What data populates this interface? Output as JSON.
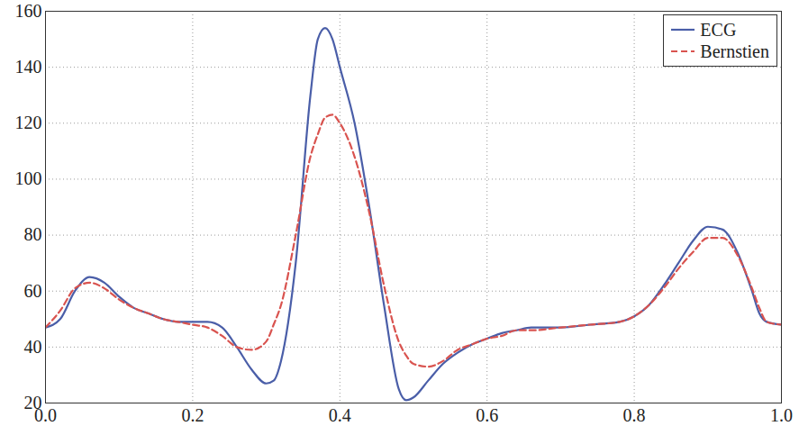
{
  "chart_data": {
    "type": "line",
    "x": [
      0,
      0.02,
      0.04,
      0.06,
      0.08,
      0.1,
      0.12,
      0.14,
      0.16,
      0.18,
      0.2,
      0.22,
      0.24,
      0.26,
      0.28,
      0.3,
      0.31,
      0.32,
      0.34,
      0.36,
      0.37,
      0.38,
      0.39,
      0.4,
      0.42,
      0.44,
      0.46,
      0.48,
      0.49,
      0.5,
      0.52,
      0.54,
      0.56,
      0.58,
      0.6,
      0.62,
      0.64,
      0.66,
      0.7,
      0.74,
      0.78,
      0.8,
      0.82,
      0.84,
      0.86,
      0.88,
      0.9,
      0.92,
      0.94,
      0.96,
      0.97,
      0.98,
      1
    ],
    "series": [
      {
        "name": "ECG",
        "color": "#4a5ea8",
        "line_style": "solid",
        "values": [
          47,
          50,
          60,
          65,
          63,
          58,
          54,
          52,
          50,
          49,
          49,
          49,
          47,
          40,
          32,
          27,
          28,
          35,
          70,
          130,
          150,
          154,
          150,
          140,
          120,
          90,
          55,
          25,
          21,
          22,
          28,
          34,
          38,
          41,
          43,
          45,
          46,
          47,
          47,
          48,
          49,
          51,
          55,
          62,
          70,
          78,
          83,
          82,
          74,
          60,
          52,
          49,
          48
        ]
      },
      {
        "name": "Bernstien",
        "color": "#d9534f",
        "line_style": "dashed",
        "values": [
          47,
          53,
          61,
          63,
          61,
          57,
          54,
          52,
          50,
          49,
          48,
          47,
          44,
          40,
          39,
          42,
          48,
          55,
          80,
          108,
          116,
          122,
          123,
          120,
          108,
          88,
          62,
          42,
          37,
          34,
          33,
          35,
          39,
          41,
          43,
          44,
          46,
          46,
          47,
          48,
          49,
          51,
          55,
          61,
          68,
          74,
          79,
          79,
          73,
          61,
          54,
          49,
          48
        ]
      }
    ],
    "xlim": [
      0,
      1
    ],
    "xticks": [
      0,
      0.2,
      0.4,
      0.6,
      0.8,
      1
    ],
    "ylim": [
      20,
      160
    ],
    "yticks": [
      20,
      40,
      60,
      80,
      100,
      120,
      140,
      160
    ],
    "grid": true,
    "legend": "upper right"
  }
}
